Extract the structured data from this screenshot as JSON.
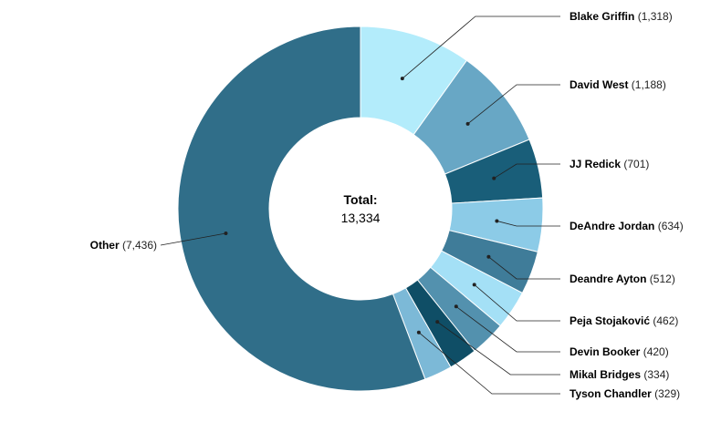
{
  "chart_data": {
    "type": "pie",
    "variant": "donut",
    "total_label": "Total:",
    "total_value": "13,334",
    "slices": [
      {
        "name": "Blake Griffin",
        "value": 1318,
        "value_label": "1,318",
        "color": "#b3ecfb"
      },
      {
        "name": "David West",
        "value": 1188,
        "value_label": "1,188",
        "color": "#68a7c5"
      },
      {
        "name": "JJ Redick",
        "value": 701,
        "value_label": "701",
        "color": "#195e79"
      },
      {
        "name": "DeAndre Jordan",
        "value": 634,
        "value_label": "634",
        "color": "#8ccbe7"
      },
      {
        "name": "Deandre Ayton",
        "value": 512,
        "value_label": "512",
        "color": "#3f7c99"
      },
      {
        "name": "Peja Stojaković",
        "value": 462,
        "value_label": "462",
        "color": "#a4e0f6"
      },
      {
        "name": "Devin Booker",
        "value": 420,
        "value_label": "420",
        "color": "#5391ae"
      },
      {
        "name": "Mikal Bridges",
        "value": 334,
        "value_label": "334",
        "color": "#0f4e66"
      },
      {
        "name": "Tyson Chandler",
        "value": 329,
        "value_label": "329",
        "color": "#7cb9d7"
      },
      {
        "name": "Other",
        "value": 7436,
        "value_label": "7,436",
        "color": "#306e89"
      }
    ]
  }
}
